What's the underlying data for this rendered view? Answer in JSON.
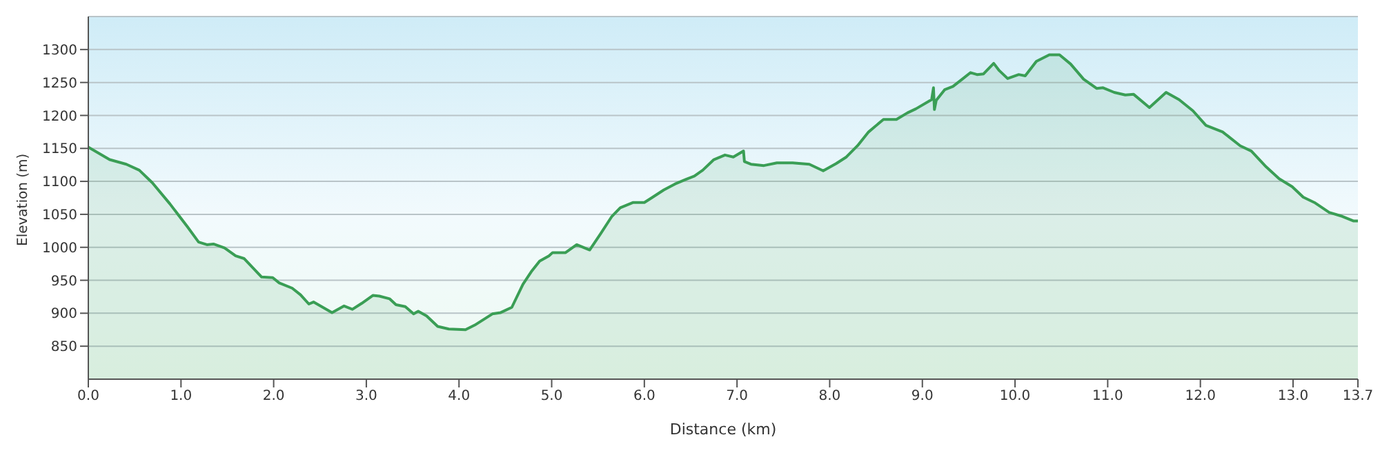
{
  "chart_data": {
    "type": "area",
    "xlabel": "Distance  (km)",
    "ylabel": "Elevation (m)",
    "xlim": [
      0,
      13.7
    ],
    "ylim": [
      800,
      1350
    ],
    "xticks": [
      {
        "value": 0,
        "label": "0.0"
      },
      {
        "value": 1,
        "label": "1.0"
      },
      {
        "value": 2,
        "label": "2.0"
      },
      {
        "value": 3,
        "label": "3.0"
      },
      {
        "value": 4,
        "label": "4.0"
      },
      {
        "value": 5,
        "label": "5.0"
      },
      {
        "value": 6,
        "label": "6.0"
      },
      {
        "value": 7,
        "label": "7.0"
      },
      {
        "value": 8,
        "label": "8.0"
      },
      {
        "value": 9,
        "label": "9.0"
      },
      {
        "value": 10,
        "label": "10.0"
      },
      {
        "value": 11,
        "label": "11.0"
      },
      {
        "value": 12,
        "label": "12.0"
      },
      {
        "value": 13,
        "label": "13.0"
      },
      13.7
    ],
    "yticks": [
      850,
      900,
      950,
      1000,
      1050,
      1100,
      1150,
      1200,
      1250,
      1300
    ],
    "grid": "y",
    "legend": false,
    "series": [
      {
        "color": "#3a9e55",
        "x": [
          0,
          0.23,
          0.41,
          0.55,
          0.69,
          0.88,
          1.07,
          1.19,
          1.28,
          1.35,
          1.47,
          1.59,
          1.68,
          1.87,
          1.99,
          2.06,
          2.2,
          2.29,
          2.38,
          2.43,
          2.53,
          2.63,
          2.76,
          2.85,
          2.95,
          3.07,
          3.14,
          3.25,
          3.32,
          3.42,
          3.51,
          3.56,
          3.65,
          3.77,
          3.89,
          4.07,
          4.17,
          4.36,
          4.45,
          4.57,
          4.69,
          4.78,
          4.87,
          4.97,
          5.01,
          5.15,
          5.27,
          5.41,
          5.53,
          5.65,
          5.74,
          5.88,
          6.0,
          6.09,
          6.21,
          6.33,
          6.45,
          6.54,
          6.63,
          6.75,
          6.87,
          6.96,
          7.07,
          7.08,
          7.15,
          7.29,
          7.43,
          7.6,
          7.78,
          7.93,
          8.07,
          8.18,
          8.3,
          8.42,
          8.58,
          8.72,
          8.84,
          8.93,
          9.1,
          9.12,
          9.13,
          9.15,
          9.24,
          9.33,
          9.43,
          9.52,
          9.59,
          9.66,
          9.77,
          9.83,
          9.92,
          10.04,
          10.11,
          10.23,
          10.37,
          10.48,
          10.6,
          10.74,
          10.88,
          10.95,
          11.07,
          11.19,
          11.28,
          11.45,
          11.63,
          11.77,
          11.92,
          12.06,
          12.24,
          12.43,
          12.55,
          12.71,
          12.85,
          12.99,
          13.11,
          13.23,
          13.39,
          13.53,
          13.65,
          13.7
        ],
        "values": [
          1152,
          1133,
          1126,
          1117,
          1098,
          1066,
          1031,
          1008,
          1004,
          1005,
          999,
          987,
          983,
          955,
          954,
          946,
          938,
          928,
          914,
          917,
          909,
          901,
          911,
          906,
          915,
          927,
          926,
          922,
          913,
          910,
          899,
          903,
          896,
          880,
          876,
          875,
          882,
          899,
          901,
          909,
          944,
          963,
          979,
          987,
          992,
          992,
          1004,
          996,
          1021,
          1047,
          1060,
          1068,
          1068,
          1076,
          1087,
          1096,
          1103,
          1108,
          1117,
          1133,
          1140,
          1137,
          1146,
          1130,
          1126,
          1124,
          1128,
          1128,
          1126,
          1116,
          1127,
          1137,
          1154,
          1175,
          1194,
          1194,
          1204,
          1210,
          1224,
          1242,
          1209,
          1223,
          1239,
          1244,
          1255,
          1265,
          1262,
          1263,
          1279,
          1268,
          1256,
          1262,
          1260,
          1282,
          1292,
          1292,
          1278,
          1255,
          1241,
          1242,
          1235,
          1231,
          1232,
          1212,
          1235,
          1224,
          1207,
          1185,
          1175,
          1154,
          1146,
          1122,
          1104,
          1092,
          1076,
          1068,
          1053,
          1047,
          1040,
          1040
        ]
      }
    ]
  }
}
